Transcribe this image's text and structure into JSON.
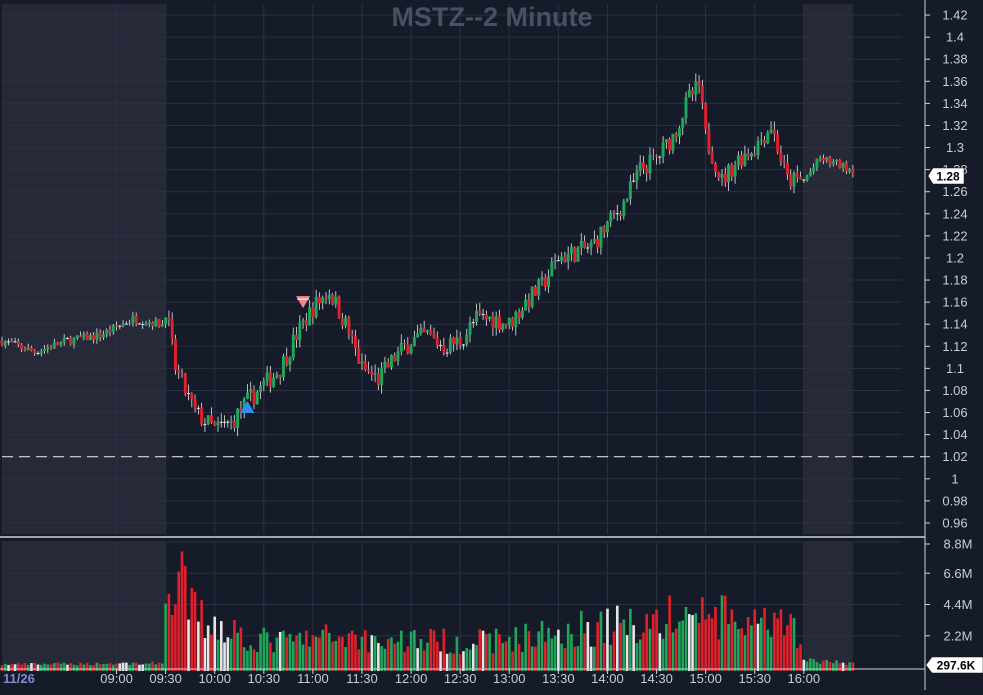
{
  "chart_data": {
    "type": "candlestick",
    "title": "MSTZ--2 Minute",
    "date_label": "11/26",
    "price_axis": {
      "ylim": [
        0.95,
        1.43
      ],
      "ticks": [
        "1.42",
        "1.4",
        "1.38",
        "1.36",
        "1.34",
        "1.32",
        "1.3",
        "1.28",
        "1.26",
        "1.24",
        "1.22",
        "1.2",
        "1.18",
        "1.16",
        "1.14",
        "1.12",
        "1.1",
        "1.08",
        "1.06",
        "1.04",
        "1.02",
        "1",
        "0.98",
        "0.96"
      ]
    },
    "volume_axis": {
      "ylim": [
        0,
        8.8
      ],
      "unit": "M",
      "ticks": [
        "8.8M",
        "6.6M",
        "4.4M",
        "2.2M"
      ]
    },
    "x_axis": {
      "range": [
        "07:50",
        "17:00"
      ],
      "ticks": [
        "09:00",
        "09:30",
        "10:00",
        "10:30",
        "11:00",
        "11:30",
        "12:00",
        "12:30",
        "13:00",
        "13:30",
        "14:00",
        "14:30",
        "15:00",
        "15:30",
        "16:00"
      ]
    },
    "sessions": {
      "premarket": [
        "07:50",
        "09:30"
      ],
      "regular": [
        "09:30",
        "16:00"
      ],
      "afterhours": [
        "16:00",
        "16:30"
      ]
    },
    "reference_line": {
      "value": 1.02,
      "style": "dashed"
    },
    "last_price": "1.28",
    "last_volume": "297.6K",
    "markers": [
      {
        "type": "buy",
        "time": "10:20",
        "price": 1.065,
        "color": "#2f8cf0"
      },
      {
        "type": "sell",
        "time": "10:54",
        "price": 1.16,
        "color": "#f08a8a"
      }
    ],
    "price_path": [
      [
        "07:50",
        1.125
      ],
      [
        "08:10",
        1.115
      ],
      [
        "08:30",
        1.125
      ],
      [
        "08:50",
        1.13
      ],
      [
        "09:10",
        1.145
      ],
      [
        "09:28",
        1.14
      ],
      [
        "09:30",
        1.155
      ],
      [
        "09:36",
        1.1
      ],
      [
        "09:48",
        1.06
      ],
      [
        "10:00",
        1.045
      ],
      [
        "10:10",
        1.05
      ],
      [
        "10:20",
        1.07
      ],
      [
        "10:30",
        1.085
      ],
      [
        "10:40",
        1.1
      ],
      [
        "10:50",
        1.13
      ],
      [
        "11:00",
        1.155
      ],
      [
        "11:10",
        1.17
      ],
      [
        "11:20",
        1.14
      ],
      [
        "11:30",
        1.1
      ],
      [
        "11:40",
        1.09
      ],
      [
        "11:50",
        1.11
      ],
      [
        "12:00",
        1.125
      ],
      [
        "12:10",
        1.13
      ],
      [
        "12:20",
        1.12
      ],
      [
        "12:30",
        1.125
      ],
      [
        "12:40",
        1.145
      ],
      [
        "12:50",
        1.145
      ],
      [
        "13:00",
        1.14
      ],
      [
        "13:10",
        1.16
      ],
      [
        "13:20",
        1.175
      ],
      [
        "13:30",
        1.2
      ],
      [
        "13:40",
        1.205
      ],
      [
        "13:50",
        1.21
      ],
      [
        "14:00",
        1.23
      ],
      [
        "14:10",
        1.25
      ],
      [
        "14:20",
        1.28
      ],
      [
        "14:30",
        1.29
      ],
      [
        "14:40",
        1.31
      ],
      [
        "14:50",
        1.345
      ],
      [
        "14:56",
        1.355
      ],
      [
        "15:00",
        1.31
      ],
      [
        "15:10",
        1.27
      ],
      [
        "15:20",
        1.29
      ],
      [
        "15:30",
        1.3
      ],
      [
        "15:40",
        1.32
      ],
      [
        "15:50",
        1.27
      ],
      [
        "16:00",
        1.27
      ],
      [
        "16:10",
        1.29
      ],
      [
        "16:20",
        1.285
      ],
      [
        "16:30",
        1.28
      ]
    ],
    "volume_path": [
      [
        "07:50",
        0.2
      ],
      [
        "09:28",
        0.3
      ],
      [
        "09:30",
        8.4
      ],
      [
        "09:34",
        3.8
      ],
      [
        "09:40",
        6.2
      ],
      [
        "09:50",
        3.8
      ],
      [
        "10:00",
        3.5
      ],
      [
        "10:10",
        3.0
      ],
      [
        "10:20",
        2.2
      ],
      [
        "10:40",
        2.0
      ],
      [
        "11:00",
        2.2
      ],
      [
        "11:20",
        2.5
      ],
      [
        "11:40",
        2.0
      ],
      [
        "12:00",
        2.2
      ],
      [
        "12:20",
        2.0
      ],
      [
        "12:40",
        2.0
      ],
      [
        "13:00",
        2.2
      ],
      [
        "13:20",
        2.5
      ],
      [
        "13:40",
        3.0
      ],
      [
        "14:00",
        3.2
      ],
      [
        "14:20",
        3.5
      ],
      [
        "14:40",
        3.8
      ],
      [
        "14:56",
        4.2
      ],
      [
        "15:10",
        3.8
      ],
      [
        "15:30",
        3.2
      ],
      [
        "15:50",
        3.0
      ],
      [
        "15:58",
        2.8
      ],
      [
        "16:00",
        0.5
      ],
      [
        "16:30",
        0.3
      ]
    ],
    "colors": {
      "up": "#1fa65a",
      "down": "#e0202a",
      "neutral": "#e6e6e6",
      "background": "#161b2a",
      "session_shade": "#262a38",
      "grid": "#2b3142",
      "axis_text": "#c8ccd6",
      "title": "#4a5060",
      "date_label": "#7f8bd8"
    }
  }
}
